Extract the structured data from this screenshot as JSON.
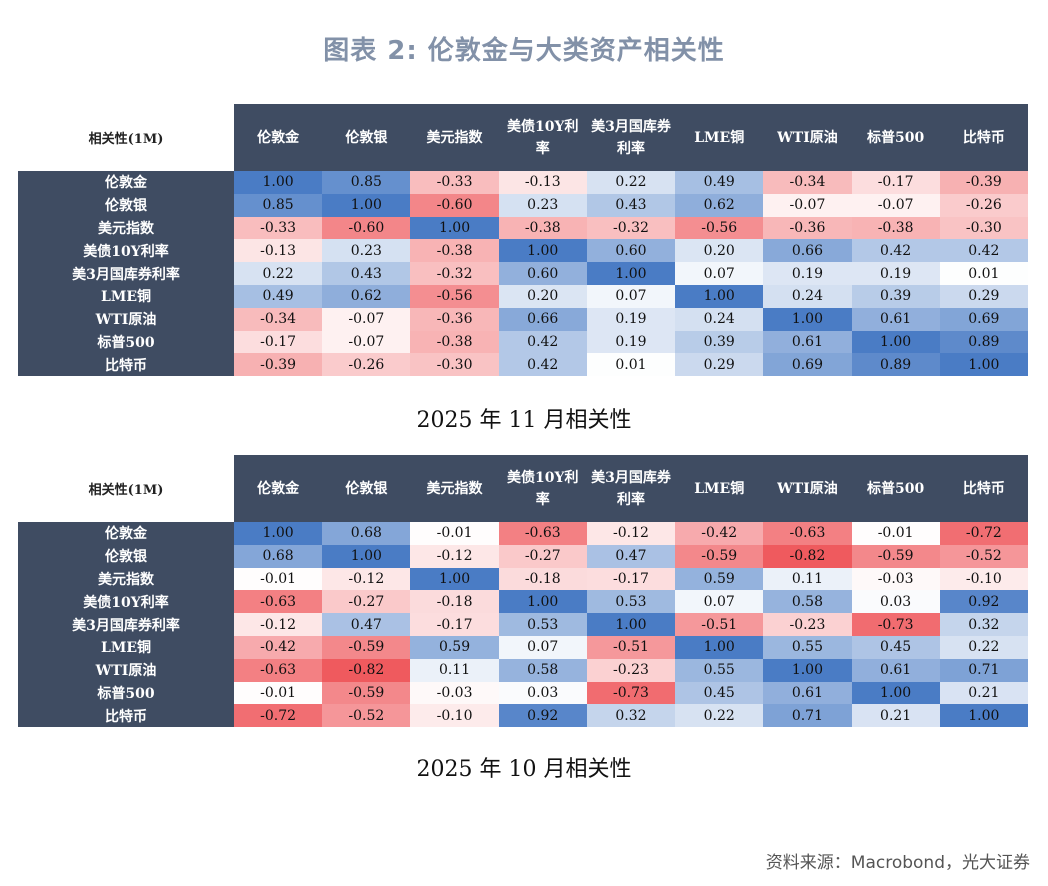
{
  "page": {
    "title": "图表 2:   伦敦金与大类资产相关性",
    "source": "资料来源：Macrobond，光大证券"
  },
  "colors": {
    "header_bg": "#3f4c62",
    "header_text": "#ffffff",
    "positive": "#4a7cc5",
    "negative": "#ef5a5e",
    "neutral": "#ffffff"
  },
  "chart_data": [
    {
      "type": "heatmap",
      "title": "2025 年 11 月相关性",
      "corner_label": "相关性(1M)",
      "columns": [
        "伦敦金",
        "伦敦银",
        "美元指数",
        "美债10Y利率",
        "美3月国库券利率",
        "LME铜",
        "WTI原油",
        "标普500",
        "比特币"
      ],
      "rows": [
        "伦敦金",
        "伦敦银",
        "美元指数",
        "美债10Y利率",
        "美3月国库券利率",
        "LME铜",
        "WTI原油",
        "标普500",
        "比特币"
      ],
      "values": [
        [
          "1.00",
          "0.85",
          "-0.33",
          "-0.13",
          "0.22",
          "0.49",
          "-0.34",
          "-0.17",
          "-0.39"
        ],
        [
          "0.85",
          "1.00",
          "-0.60",
          "0.23",
          "0.43",
          "0.62",
          "-0.07",
          "-0.07",
          "-0.26"
        ],
        [
          "-0.33",
          "-0.60",
          "1.00",
          "-0.38",
          "-0.32",
          "-0.56",
          "-0.36",
          "-0.38",
          "-0.30"
        ],
        [
          "-0.13",
          "0.23",
          "-0.38",
          "1.00",
          "0.60",
          "0.20",
          "0.66",
          "0.42",
          "0.42"
        ],
        [
          "0.22",
          "0.43",
          "-0.32",
          "0.60",
          "1.00",
          "0.07",
          "0.19",
          "0.19",
          "0.01"
        ],
        [
          "0.49",
          "0.62",
          "-0.56",
          "0.20",
          "0.07",
          "1.00",
          "0.24",
          "0.39",
          "0.29"
        ],
        [
          "-0.34",
          "-0.07",
          "-0.36",
          "0.66",
          "0.19",
          "0.24",
          "1.00",
          "0.61",
          "0.69"
        ],
        [
          "-0.17",
          "-0.07",
          "-0.38",
          "0.42",
          "0.19",
          "0.39",
          "0.61",
          "1.00",
          "0.89"
        ],
        [
          "-0.39",
          "-0.26",
          "-0.30",
          "0.42",
          "0.01",
          "0.29",
          "0.69",
          "0.89",
          "1.00"
        ]
      ],
      "range": [
        -1,
        1
      ]
    },
    {
      "type": "heatmap",
      "title": "2025 年 10 月相关性",
      "corner_label": "相关性(1M)",
      "columns": [
        "伦敦金",
        "伦敦银",
        "美元指数",
        "美债10Y利率",
        "美3月国库券利率",
        "LME铜",
        "WTI原油",
        "标普500",
        "比特币"
      ],
      "rows": [
        "伦敦金",
        "伦敦银",
        "美元指数",
        "美债10Y利率",
        "美3月国库券利率",
        "LME铜",
        "WTI原油",
        "标普500",
        "比特币"
      ],
      "values": [
        [
          "1.00",
          "0.68",
          "-0.01",
          "-0.63",
          "-0.12",
          "-0.42",
          "-0.63",
          "-0.01",
          "-0.72"
        ],
        [
          "0.68",
          "1.00",
          "-0.12",
          "-0.27",
          "0.47",
          "-0.59",
          "-0.82",
          "-0.59",
          "-0.52"
        ],
        [
          "-0.01",
          "-0.12",
          "1.00",
          "-0.18",
          "-0.17",
          "0.59",
          "0.11",
          "-0.03",
          "-0.10"
        ],
        [
          "-0.63",
          "-0.27",
          "-0.18",
          "1.00",
          "0.53",
          "0.07",
          "0.58",
          "0.03",
          "0.92"
        ],
        [
          "-0.12",
          "0.47",
          "-0.17",
          "0.53",
          "1.00",
          "-0.51",
          "-0.23",
          "-0.73",
          "0.32"
        ],
        [
          "-0.42",
          "-0.59",
          "0.59",
          "0.07",
          "-0.51",
          "1.00",
          "0.55",
          "0.45",
          "0.22"
        ],
        [
          "-0.63",
          "-0.82",
          "0.11",
          "0.58",
          "-0.23",
          "0.55",
          "1.00",
          "0.61",
          "0.71"
        ],
        [
          "-0.01",
          "-0.59",
          "-0.03",
          "0.03",
          "-0.73",
          "0.45",
          "0.61",
          "1.00",
          "0.21"
        ],
        [
          "-0.72",
          "-0.52",
          "-0.10",
          "0.92",
          "0.32",
          "0.22",
          "0.71",
          "0.21",
          "1.00"
        ]
      ],
      "range": [
        -1,
        1
      ]
    }
  ]
}
